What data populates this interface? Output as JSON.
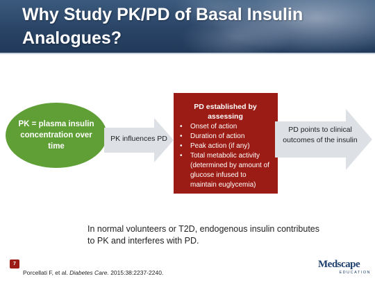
{
  "slide": {
    "title": "Why Study PK/PD of Basal Insulin Analogues?",
    "number": "7"
  },
  "diagram": {
    "pk_box": "PK = plasma insulin concentration over time",
    "arrow1_label": "PK influences PD",
    "pd_box": {
      "heading": "PD established by assessing",
      "items": [
        "Onset of action",
        "Duration of action",
        "Peak action (if any)",
        "Total metabolic activity (determined by amount of glucose infused to maintain euglycemia)"
      ]
    },
    "arrow2_label": "PD points to  clinical outcomes of the insulin"
  },
  "note": "In normal volunteers or T2D, endogenous insulin contributes to PK and interferes with PD.",
  "citation": {
    "authors": "Porcellati F, et al.",
    "journal": "Diabetes Care.",
    "details": "2015:38:2237-2240."
  },
  "logo": {
    "word": "Medscape",
    "sub": "EDUCATION"
  },
  "colors": {
    "header_blue": "#2a4466",
    "ellipse_green": "#5f9f35",
    "pd_red": "#9a1c14",
    "arrow_gray": "#dde1e6"
  }
}
